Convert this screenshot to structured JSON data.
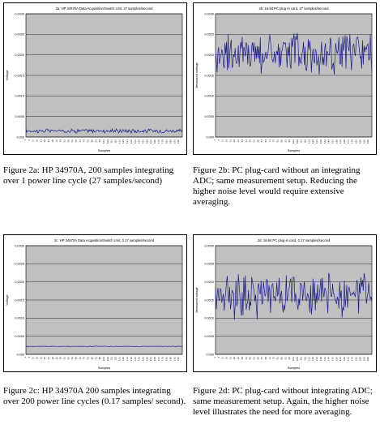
{
  "charts": [
    {
      "id": "a",
      "title": "2a: HP 34970A Data Acquisition/Switch Unit, 27 samples/second",
      "xlabel": "Samples",
      "ylabel": "Voltage",
      "caption": "Figure 2a: HP 34970A, 200 samples integrating over 1 power line cycle (27 samples/second)"
    },
    {
      "id": "b",
      "title": "2b: 16-bit PC plug-in card, 27 samples/second",
      "xlabel": "Samples",
      "ylabel": "Measured voltage",
      "caption": "Figure 2b: PC plug-card without an integrating ADC; same measurement setup. Reducing the higher noise level would require extensive averaging."
    },
    {
      "id": "c",
      "title": "2c: HP 34970A Data Acquisition/Switch Unit, 0.17 samples/second",
      "xlabel": "Samples",
      "ylabel": "Voltage",
      "caption": "Figure 2c: HP 34970A 200 samples integrating over 200 power line cycles (0.17 samples/ second)."
    },
    {
      "id": "d",
      "title": "2d: 16-bit PC plug-in card, 0.17 samples/second",
      "xlabel": "Samples",
      "ylabel": "Measured voltage",
      "caption": "Figure 2d: PC plug-card without integrating ADC; same measurement setup. Again, the higher noise level illustrates the need for more averaging."
    }
  ],
  "colors": {
    "plot_bg": "#c0c0c0",
    "frame_bg": "#ffffff",
    "grid": "#000000",
    "series": "#1a1a8c"
  },
  "chart_data": [
    {
      "type": "line",
      "title": "2a: HP 34970A Data Acquisition/Switch Unit, 27 samples/second",
      "xlabel": "Samples",
      "ylabel": "Voltage",
      "ylim": [
        0,
        0.003
      ],
      "yticks": [
        "0.000",
        "0.0005",
        "0.0010",
        "0.0015",
        "0.0020",
        "0.0025",
        "0.0030"
      ],
      "grid": true,
      "x_count": 200,
      "y_mean": 0.00015,
      "y_noise": 4e-05,
      "series": [
        {
          "values": []
        }
      ]
    },
    {
      "type": "line",
      "title": "2b: 16-bit PC plug-in card, 27 samples/second",
      "xlabel": "Samples",
      "ylabel": "Measured voltage",
      "ylim": [
        0,
        0.003
      ],
      "yticks": [
        "0.000",
        "0.0005",
        "0.0010",
        "0.0015",
        "0.0020",
        "0.0025",
        "0.0030"
      ],
      "grid": true,
      "x_count": 200,
      "y_mean": 0.00205,
      "y_noise": 0.00045,
      "series": [
        {
          "values": []
        }
      ]
    },
    {
      "type": "line",
      "title": "2c: HP 34970A Data Acquisition/Switch Unit, 0.17 samples/second",
      "xlabel": "Samples",
      "ylabel": "Voltage",
      "ylim": [
        0,
        0.003
      ],
      "yticks": [
        "0.000",
        "0.0005",
        "0.0010",
        "0.0015",
        "0.0020",
        "0.0025",
        "0.0030"
      ],
      "grid": true,
      "x_count": 200,
      "y_mean": 0.00022,
      "y_noise": 6e-06,
      "series": [
        {
          "values": []
        }
      ]
    },
    {
      "type": "line",
      "title": "2d: 16-bit PC plug-in card, 0.17 samples/second",
      "xlabel": "Samples",
      "ylabel": "Measured voltage",
      "ylim": [
        0,
        0.003
      ],
      "yticks": [
        "0.000",
        "0.0005",
        "0.0010",
        "0.0015",
        "0.0020",
        "0.0025",
        "0.0030"
      ],
      "grid": true,
      "x_count": 200,
      "y_mean": 0.00165,
      "y_noise": 0.00045,
      "series": [
        {
          "values": []
        }
      ]
    }
  ]
}
